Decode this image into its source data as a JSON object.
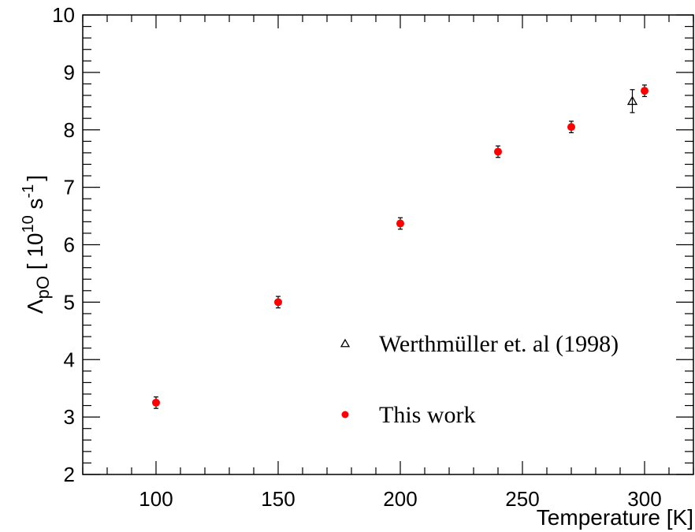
{
  "chart_data": {
    "type": "scatter",
    "xlabel": "Temperature [K]",
    "ylabel": {
      "main": "Λ",
      "sub": "pO",
      "unit_open": " [ 10",
      "unit_exp": "10",
      "unit_mid": " s",
      "unit_exp2": "-1",
      "unit_close": "]"
    },
    "xlim": [
      70,
      320
    ],
    "ylim": [
      2,
      10
    ],
    "xticks": [
      100,
      150,
      200,
      250,
      300
    ],
    "yticks": [
      2,
      3,
      4,
      5,
      6,
      7,
      8,
      9,
      10
    ],
    "grid": false,
    "legend_position": "lower-right",
    "series": [
      {
        "name": "Werthmüller et. al (1998)",
        "marker": "open-triangle",
        "color": "#000000",
        "points": [
          {
            "x": 295,
            "y": 8.5,
            "err": 0.2
          }
        ]
      },
      {
        "name": "This work",
        "marker": "filled-circle",
        "color": "#ff0000",
        "points": [
          {
            "x": 100,
            "y": 3.25,
            "err": 0.1
          },
          {
            "x": 150,
            "y": 5.0,
            "err": 0.1
          },
          {
            "x": 200,
            "y": 6.37,
            "err": 0.1
          },
          {
            "x": 240,
            "y": 7.62,
            "err": 0.1
          },
          {
            "x": 270,
            "y": 8.05,
            "err": 0.1
          },
          {
            "x": 300,
            "y": 8.68,
            "err": 0.1
          }
        ]
      }
    ]
  }
}
